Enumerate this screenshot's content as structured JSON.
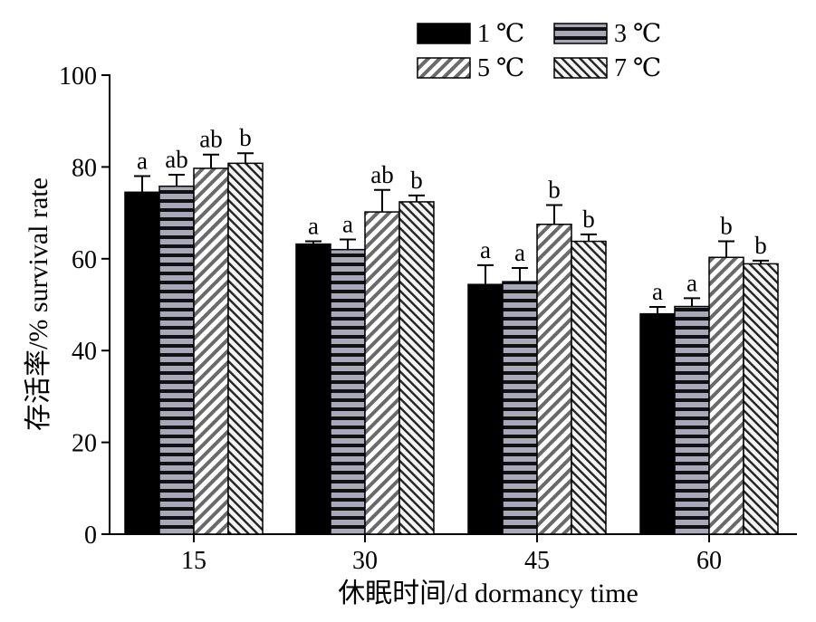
{
  "chart_data": {
    "type": "bar",
    "xlabel": "休眠时间/d dormancy time",
    "ylabel": "存活率/% survival rate",
    "categories": [
      "15",
      "30",
      "45",
      "60"
    ],
    "ylim": [
      0,
      100
    ],
    "yticks": [
      0,
      20,
      40,
      60,
      80,
      100
    ],
    "legend_position": "top-right",
    "series": [
      {
        "name": "1 ℃",
        "pattern": "solid-black",
        "values": [
          74.5,
          63.2,
          54.4,
          48.0
        ],
        "errors": [
          3.5,
          0.6,
          4.2,
          1.5
        ],
        "labels": [
          "a",
          "a",
          "a",
          "a"
        ]
      },
      {
        "name": "3 ℃",
        "pattern": "horizontal-stripes",
        "values": [
          75.8,
          62.0,
          55.0,
          49.6
        ],
        "errors": [
          2.5,
          2.2,
          3.0,
          1.8
        ],
        "labels": [
          "ab",
          "a",
          "a",
          "a"
        ]
      },
      {
        "name": "5 ℃",
        "pattern": "forward-diagonal",
        "values": [
          79.7,
          70.2,
          67.5,
          60.3
        ],
        "errors": [
          3.0,
          4.8,
          4.2,
          3.5
        ],
        "labels": [
          "ab",
          "ab",
          "b",
          "b"
        ]
      },
      {
        "name": "7 ℃",
        "pattern": "backward-diagonal",
        "values": [
          80.8,
          72.4,
          63.8,
          58.9
        ],
        "errors": [
          2.2,
          1.4,
          1.5,
          0.7
        ],
        "labels": [
          "b",
          "b",
          "b",
          "b"
        ]
      }
    ]
  }
}
